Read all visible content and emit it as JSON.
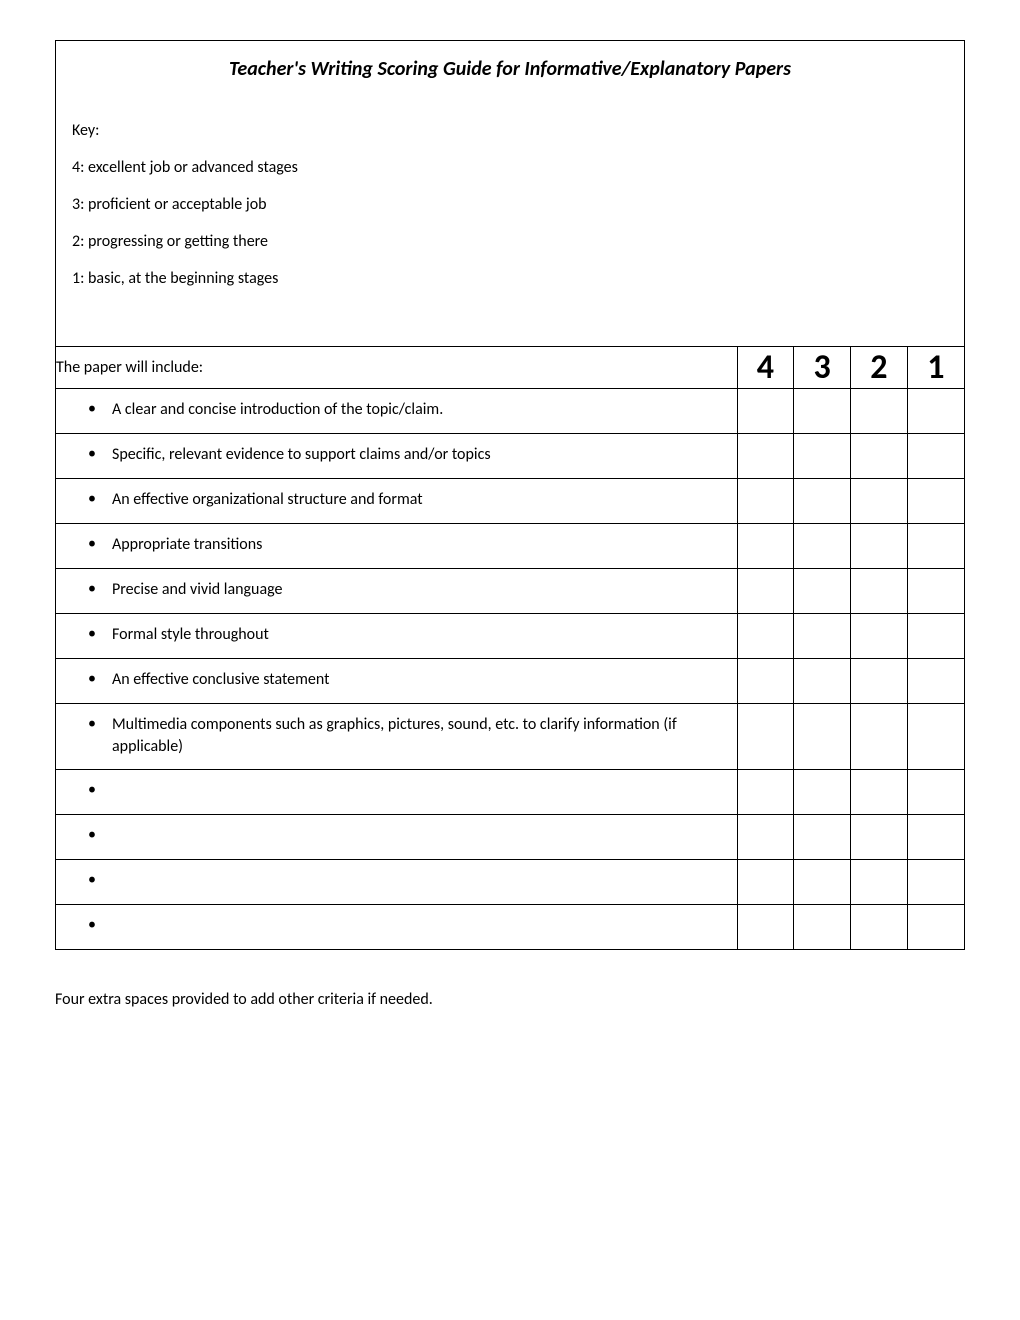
{
  "title": "Teacher's Writing Scoring Guide for Informative/Explanatory Papers",
  "key": {
    "label": "Key:",
    "items": [
      "4: excellent job or advanced stages",
      "3: proficient or acceptable job",
      "2: progressing or getting there",
      "1: basic, at the beginning stages"
    ]
  },
  "table_header": {
    "criteria_label": "The paper will include:",
    "scores": [
      "4",
      "3",
      "2",
      "1"
    ]
  },
  "criteria": [
    "A clear and concise introduction of the topic/claim.",
    "Specific, relevant evidence to support claims and/or topics",
    "An effective organizational structure and format",
    "Appropriate transitions",
    "Precise and vivid language",
    "Formal style throughout",
    "An effective conclusive statement",
    "Multimedia components such as graphics, pictures, sound, etc. to clarify information (if applicable)",
    "",
    "",
    "",
    ""
  ],
  "footer_note": "Four extra spaces provided to add other criteria if needed.",
  "colors": {
    "border": "#000000",
    "background": "#ffffff",
    "text": "#000000"
  },
  "typography": {
    "title_fontsize": 20,
    "body_fontsize": 16,
    "score_fontsize": 34,
    "font_family": "Calibri"
  },
  "layout": {
    "criteria_col_width": 660,
    "score_col_width": 55
  }
}
